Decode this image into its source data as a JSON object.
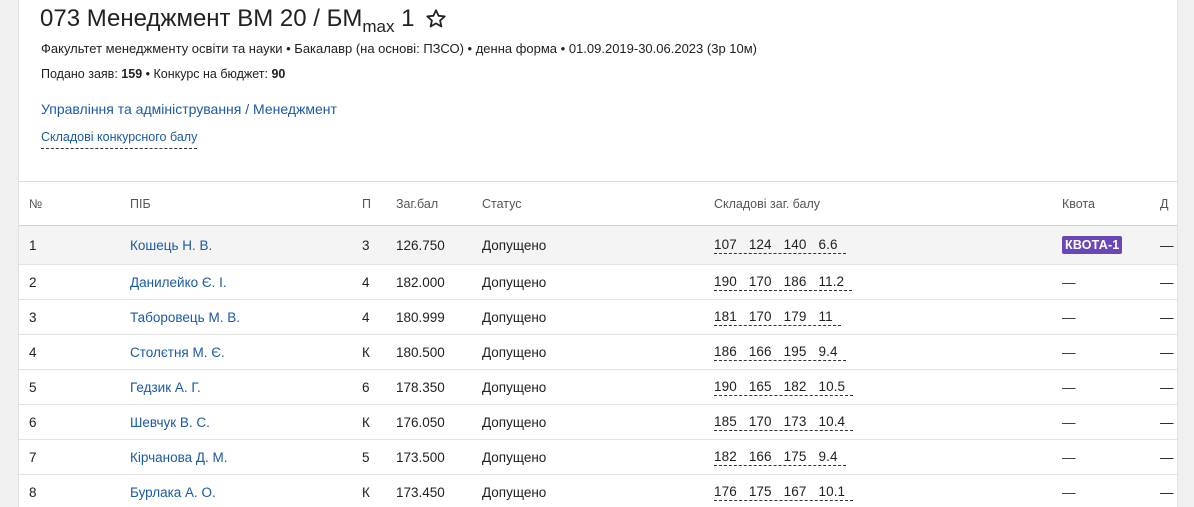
{
  "header": {
    "title_main": "073 Менеджмент",
    "title_offer": "ВМ 20 / БМ",
    "title_sub": "max",
    "title_count": "1",
    "meta": "Факультет менеджменту освіти та науки • Бакалавр (на основі: ПЗСО) • денна форма • 01.09.2019-30.06.2023 (3р 10м)",
    "applications_label": "Подано заяв:",
    "applications_value": "159",
    "budget_label": "• Конкурс на бюджет:",
    "budget_value": "90",
    "link_area": "Управління та адміністрування",
    "link_sep": " / ",
    "link_specialty": "Менеджмент",
    "components_link": "Складові конкурсного балу"
  },
  "table": {
    "headers": [
      "№",
      "ПІБ",
      "П",
      "Заг.бал",
      "Статус",
      "Складові заг. балу",
      "Квота",
      "Д"
    ],
    "rows": [
      {
        "num": "1",
        "name": "Кошець Н. В.",
        "p": "3",
        "score": "126.750",
        "status": "Допущено",
        "components": [
          "107",
          "124",
          "140",
          "6.6"
        ],
        "quota": "КВОТА-1",
        "d": "—"
      },
      {
        "num": "2",
        "name": "Данилейко Є. І.",
        "p": "4",
        "score": "182.000",
        "status": "Допущено",
        "components": [
          "190",
          "170",
          "186",
          "11.2"
        ],
        "quota": "—",
        "d": "—"
      },
      {
        "num": "3",
        "name": "Таборовець М. В.",
        "p": "4",
        "score": "180.999",
        "status": "Допущено",
        "components": [
          "181",
          "170",
          "179",
          "11"
        ],
        "quota": "—",
        "d": "—"
      },
      {
        "num": "4",
        "name": "Столєтня М. Є.",
        "p": "К",
        "score": "180.500",
        "status": "Допущено",
        "components": [
          "186",
          "166",
          "195",
          "9.4"
        ],
        "quota": "—",
        "d": "—"
      },
      {
        "num": "5",
        "name": "Гедзик А. Г.",
        "p": "6",
        "score": "178.350",
        "status": "Допущено",
        "components": [
          "190",
          "165",
          "182",
          "10.5"
        ],
        "quota": "—",
        "d": "—"
      },
      {
        "num": "6",
        "name": "Шевчук В. С.",
        "p": "К",
        "score": "176.050",
        "status": "Допущено",
        "components": [
          "185",
          "170",
          "173",
          "10.4"
        ],
        "quota": "—",
        "d": "—"
      },
      {
        "num": "7",
        "name": "Кірчанова Д. М.",
        "p": "5",
        "score": "173.500",
        "status": "Допущено",
        "components": [
          "182",
          "166",
          "175",
          "9.4"
        ],
        "quota": "—",
        "d": "—"
      },
      {
        "num": "8",
        "name": "Бурлака А. О.",
        "p": "К",
        "score": "173.450",
        "status": "Допущено",
        "components": [
          "176",
          "175",
          "167",
          "10.1"
        ],
        "quota": "—",
        "d": "—"
      }
    ]
  },
  "colors": {
    "link": "#1a5aa6",
    "quota_badge": "#6a47b8"
  },
  "icons": {
    "favorite": "star-outline-icon"
  }
}
